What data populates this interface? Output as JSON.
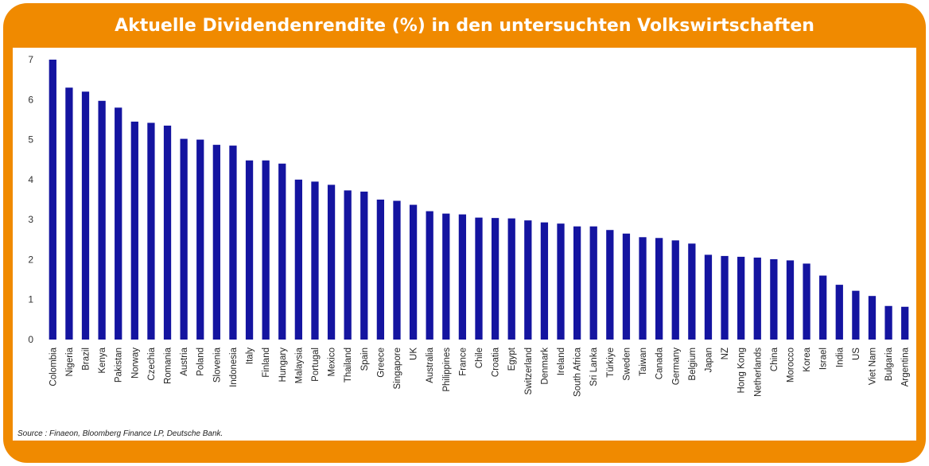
{
  "title": "Aktuelle Dividendenrendite (%) in den untersuchten Volkswirtschaften",
  "source": "Source : Finaeon, Bloomberg Finance LP, Deutsche Bank.",
  "colors": {
    "frame": "#F08A00",
    "bar": "#1414A0"
  },
  "chart_data": {
    "type": "bar",
    "categories": [
      "Colombia",
      "Nigeria",
      "Brazil",
      "Kenya",
      "Pakistan",
      "Norway",
      "Czechia",
      "Romania",
      "Austria",
      "Poland",
      "Slovenia",
      "Indonesia",
      "Italy",
      "Finland",
      "Hungary",
      "Malaysia",
      "Portugal",
      "Mexico",
      "Thailand",
      "Spain",
      "Greece",
      "Singapore",
      "UK",
      "Australia",
      "Philippines",
      "France",
      "Chile",
      "Croatia",
      "Egypt",
      "Switzerland",
      "Denmark",
      "Ireland",
      "South Africa",
      "Sri Lanka",
      "Türkiye",
      "Sweden",
      "Taiwan",
      "Canada",
      "Germany",
      "Belgium",
      "Japan",
      "NZ",
      "Hong Kong",
      "Netherlands",
      "China",
      "Morocco",
      "Korea",
      "Israel",
      "India",
      "US",
      "Viet Nam",
      "Bulgaria",
      "Argentina"
    ],
    "values": [
      7.0,
      6.3,
      6.2,
      5.97,
      5.8,
      5.45,
      5.42,
      5.35,
      5.02,
      5.0,
      4.87,
      4.85,
      4.48,
      4.48,
      4.4,
      4.0,
      3.95,
      3.87,
      3.73,
      3.7,
      3.5,
      3.47,
      3.37,
      3.21,
      3.15,
      3.13,
      3.05,
      3.04,
      3.03,
      2.98,
      2.93,
      2.9,
      2.83,
      2.83,
      2.74,
      2.65,
      2.56,
      2.54,
      2.48,
      2.4,
      2.12,
      2.09,
      2.07,
      2.05,
      2.01,
      1.98,
      1.9,
      1.6,
      1.37,
      1.22,
      1.09,
      0.84,
      0.82
    ],
    "yticks": [
      0,
      1,
      2,
      3,
      4,
      5,
      6,
      7
    ],
    "ylim": [
      0,
      7
    ],
    "grid": false,
    "legend": "none"
  }
}
